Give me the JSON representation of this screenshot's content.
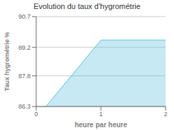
{
  "chart_data": {
    "type": "area",
    "title": "Evolution du taux d'hygrométrie",
    "xlabel": "heure par heure",
    "ylabel": "Taux hygrométrie %",
    "x": [
      0.15,
      1.0,
      2.0
    ],
    "values": [
      86.3,
      89.55,
      89.55
    ],
    "color": "#5bbfde",
    "xlim": [
      0,
      2
    ],
    "xticks": [
      0,
      1,
      2
    ],
    "ylim": [
      86.3,
      90.7
    ],
    "yticks": [
      86.3,
      87.8,
      89.2,
      90.7
    ],
    "grid": true
  }
}
